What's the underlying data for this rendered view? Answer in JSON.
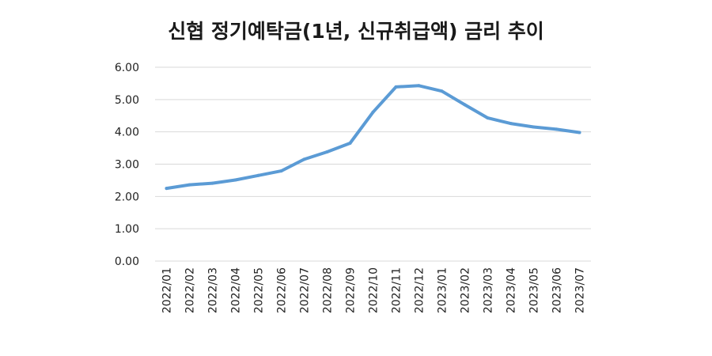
{
  "chart_data": {
    "type": "line",
    "title": "신협 정기예탁금(1년, 신규취급액) 금리 추이",
    "xlabel": "",
    "ylabel": "",
    "ylim": [
      0,
      6
    ],
    "yticks": [
      "0.00",
      "1.00",
      "2.00",
      "3.00",
      "4.00",
      "5.00",
      "6.00"
    ],
    "grid": true,
    "legend": "none",
    "line_color": "#5b9bd5",
    "categories": [
      "2022/01",
      "2022/02",
      "2022/03",
      "2022/04",
      "2022/05",
      "2022/06",
      "2022/07",
      "2022/08",
      "2022/09",
      "2022/10",
      "2022/11",
      "2022/12",
      "2023/01",
      "2023/02",
      "2023/03",
      "2023/04",
      "2023/05",
      "2023/06",
      "2023/07"
    ],
    "series": [
      {
        "values": [
          2.25,
          2.36,
          2.41,
          2.51,
          2.65,
          2.79,
          3.15,
          3.38,
          3.65,
          4.61,
          5.39,
          5.43,
          5.26,
          4.84,
          4.43,
          4.26,
          4.15,
          4.08,
          3.98
        ]
      }
    ]
  }
}
